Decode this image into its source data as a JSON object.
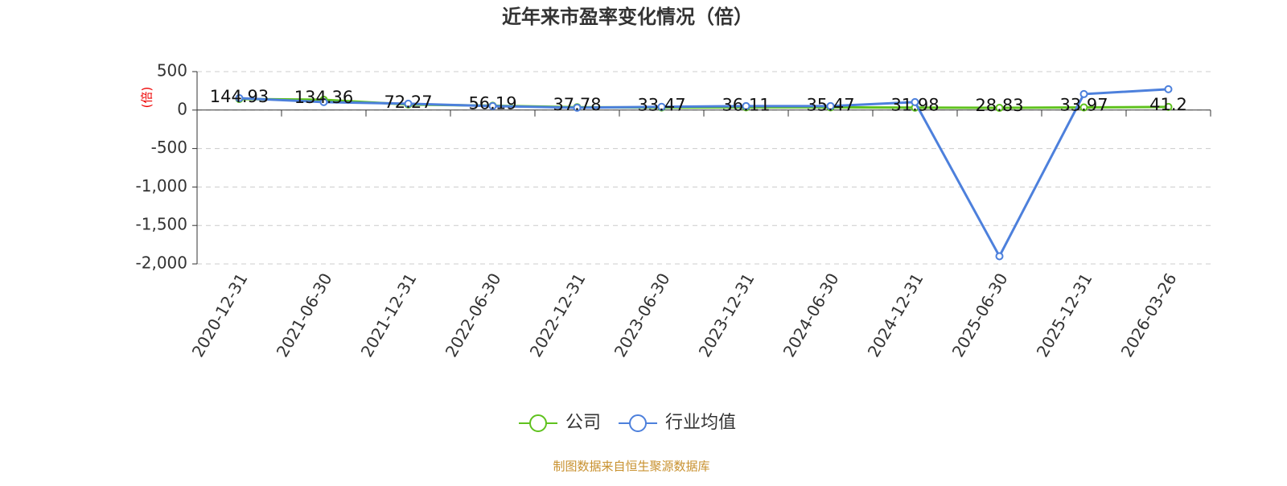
{
  "chart_data": {
    "type": "line",
    "title": "近年来市盈率变化情况（倍）",
    "y_label": "(倍)",
    "source": "制图数据来自恒生聚源数据库",
    "categories": [
      "2020-12-31",
      "2021-06-30",
      "2021-12-31",
      "2022-06-30",
      "2022-12-31",
      "2023-06-30",
      "2023-12-31",
      "2024-06-30",
      "2024-12-31",
      "2025-06-30",
      "2025-12-31",
      "2026-03-26"
    ],
    "series": [
      {
        "name": "公司",
        "color": "#5fc21e",
        "values": [
          144.93,
          134.36,
          72.27,
          56.19,
          37.78,
          33.47,
          36.11,
          35.47,
          31.98,
          28.83,
          33.97,
          41.2
        ],
        "data_labels": true
      },
      {
        "name": "行业均值",
        "color": "#4d80dc",
        "values": [
          155,
          104,
          83,
          52,
          31,
          42,
          52,
          52,
          104,
          -1900,
          208,
          271
        ]
      }
    ],
    "ylim": [
      -2000,
      500
    ],
    "yticks": [
      {
        "value": -2000,
        "label": "-2,000"
      },
      {
        "value": -1500,
        "label": "-1,500"
      },
      {
        "value": -1000,
        "label": "-1,000"
      },
      -500,
      0,
      500
    ],
    "grid": true,
    "legend": "bottom"
  }
}
